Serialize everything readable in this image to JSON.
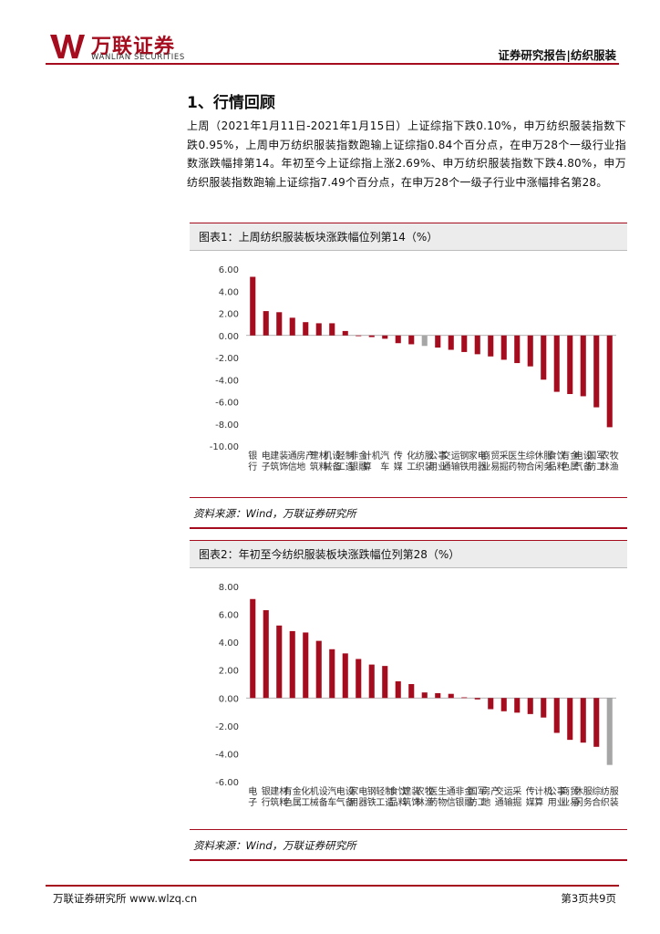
{
  "header": {
    "logo_cn": "万联证券",
    "logo_en": "WANLIAN SECURITIES",
    "right": "证券研究报告|纺织服装"
  },
  "section": {
    "title": "1、行情回顾",
    "paragraph": "上周（2021年1月11日-2021年1月15日）上证综指下跌0.10%，申万纺织服装指数下跌0.95%，上周申万纺织服装指数跑输上证综指0.84个百分点，在申万28个一级行业指数涨跌幅排第14。年初至今上证综指上涨2.69%、申万纺织服装指数下跌4.80%，申万纺织服装指数跑输上证综指7.49个百分点，在申万28个一级子行业中涨幅排名第28。"
  },
  "figure1": {
    "title": "图表1：上周纺织服装板块涨跌幅位列第14（%）",
    "source": "资料来源：Wind，万联证券研究所"
  },
  "figure2": {
    "title": "图表2：年初至今纺织服装板块涨跌幅位列第28（%）",
    "source": "资料来源：Wind，万联证券研究所"
  },
  "footer": {
    "left": "万联证券研究所 www.wlzq.cn",
    "right": "第3页共9页"
  },
  "colors": {
    "accent": "#a50d1f",
    "bar": "#a50d1f",
    "highlight": "#a6a6a6"
  },
  "chart_data": [
    {
      "type": "bar",
      "categories": [
        "银行",
        "电子",
        "建筑装饰",
        "通信",
        "房地产",
        "建筑材料",
        "机械设备",
        "轻工制造",
        "非银金融",
        "计算机",
        "汽车",
        "传媒",
        "化工",
        "纺织服装",
        "公用事业",
        "交通运输",
        "钢铁",
        "家用电器",
        "商业贸易",
        "采掘",
        "医药生物",
        "综合",
        "休闲服务",
        "食品饮料",
        "有色金属",
        "电气设备",
        "国防军工",
        "农林牧渔"
      ],
      "values": [
        5.3,
        2.2,
        2.1,
        1.6,
        1.2,
        1.1,
        1.1,
        0.4,
        -0.05,
        -0.15,
        -0.3,
        -0.7,
        -0.8,
        -0.95,
        -1.1,
        -1.3,
        -1.5,
        -1.7,
        -1.9,
        -2.2,
        -2.5,
        -2.8,
        -4.0,
        -5.1,
        -5.3,
        -5.5,
        -6.5,
        -8.3
      ],
      "highlight": "纺织服装",
      "ylim": [
        -10,
        6
      ],
      "yticks": [
        "6.00",
        "4.00",
        "2.00",
        "0.00",
        "-2.00",
        "-4.00",
        "-6.00",
        "-8.00",
        "-10.00"
      ],
      "grid": false
    },
    {
      "type": "bar",
      "categories": [
        "电子",
        "银行",
        "建筑材料",
        "有色金属",
        "化工",
        "机械设备",
        "汽车",
        "电气设备",
        "家用电器",
        "钢铁",
        "轻工制造",
        "食品饮料",
        "建筑装饰",
        "农林牧渔",
        "医药生物",
        "通信",
        "非银金融",
        "国防军工",
        "房地产",
        "交通运输",
        "采掘",
        "传媒",
        "计算机",
        "公用事业",
        "商业贸易",
        "休闲服务",
        "综合",
        "纺织服装"
      ],
      "values": [
        7.1,
        6.3,
        5.2,
        4.8,
        4.7,
        4.1,
        3.5,
        3.2,
        2.8,
        2.4,
        2.3,
        1.2,
        1.0,
        0.4,
        0.35,
        0.3,
        0.05,
        -0.1,
        -0.8,
        -0.95,
        -1.05,
        -1.15,
        -1.4,
        -2.5,
        -3.0,
        -3.2,
        -3.5,
        -4.8
      ],
      "highlight": "纺织服装",
      "ylim": [
        -6,
        8
      ],
      "yticks": [
        "8.00",
        "6.00",
        "4.00",
        "2.00",
        "0.00",
        "-2.00",
        "-4.00",
        "-6.00"
      ],
      "grid": false
    }
  ]
}
